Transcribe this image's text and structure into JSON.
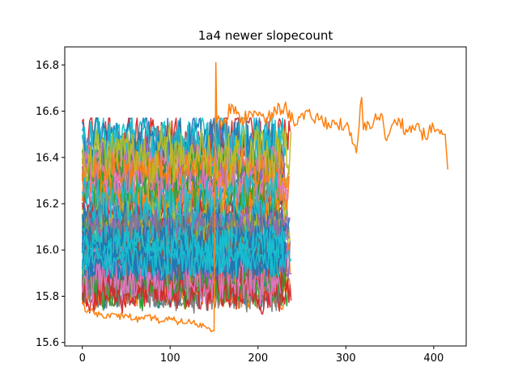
{
  "chart_data": {
    "type": "line",
    "title": "1a4 newer slopecount",
    "xlabel": "",
    "ylabel": "",
    "xlim": [
      -20,
      437
    ],
    "ylim": [
      15.585,
      16.878
    ],
    "x_ticks": [
      0,
      100,
      200,
      300,
      400
    ],
    "y_ticks": [
      15.6,
      15.8,
      16.0,
      16.2,
      16.4,
      16.6,
      16.8
    ],
    "grid": false,
    "legend": "none",
    "palette": [
      "#1f77b4",
      "#ff7f0e",
      "#2ca02c",
      "#d62728",
      "#9467bd",
      "#8c564b",
      "#e377c2",
      "#7f7f7f",
      "#bcbd22",
      "#17becf"
    ],
    "series_overview": {
      "series_count_estimate": 60,
      "typical_x_range": [
        0,
        238
      ],
      "band_y_range": [
        15.72,
        16.57
      ]
    },
    "series": [
      {
        "color": "#ff7f0e",
        "x": [
          0,
          5,
          10,
          20,
          30,
          40,
          50,
          60,
          70,
          80,
          90,
          100,
          110,
          120,
          130,
          140,
          145,
          150,
          152,
          153,
          155,
          160,
          170,
          180,
          190,
          200,
          210,
          220,
          230,
          240,
          260,
          280,
          300,
          312,
          318,
          320,
          340,
          345,
          360,
          370,
          380,
          390,
          400,
          410,
          413,
          416
        ],
        "y": [
          15.77,
          15.73,
          15.74,
          15.72,
          15.72,
          15.71,
          15.72,
          15.7,
          15.7,
          15.71,
          15.69,
          15.7,
          15.69,
          15.69,
          15.68,
          15.67,
          15.66,
          15.65,
          16.81,
          16.55,
          16.58,
          16.55,
          16.63,
          16.55,
          16.6,
          16.58,
          16.56,
          16.6,
          16.62,
          16.56,
          16.58,
          16.55,
          16.54,
          16.42,
          16.66,
          16.52,
          16.59,
          16.48,
          16.57,
          16.51,
          16.54,
          16.49,
          16.53,
          16.5,
          16.5,
          16.35
        ]
      }
    ]
  }
}
